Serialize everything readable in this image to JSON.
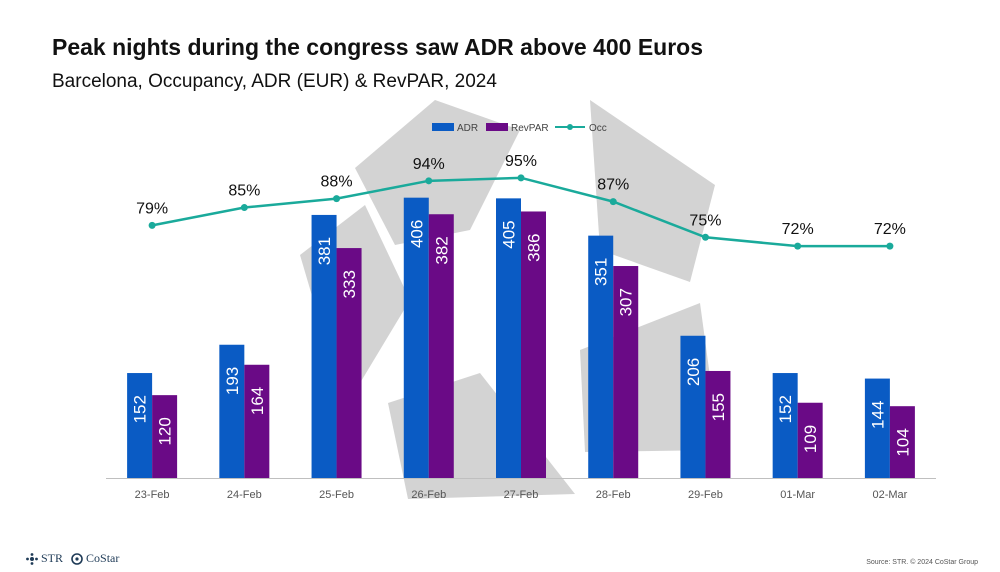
{
  "header": {
    "title": "Peak nights during the congress saw ADR above 400 Euros",
    "subtitle": "Barcelona, Occupancy, ADR (EUR) & RevPAR, 2024"
  },
  "footer": {
    "logo_str": "STR",
    "logo_costar": "CoStar",
    "source": "Source: STR. © 2024 CoStar Group"
  },
  "colors": {
    "adr": "#0a5bc4",
    "revpar": "#6a0a86",
    "occ": "#1aaa9b",
    "axis": "#bfbfbf",
    "overlay": "#b8b8b8"
  },
  "chart_data": {
    "type": "bar",
    "categories": [
      "23-Feb",
      "24-Feb",
      "25-Feb",
      "26-Feb",
      "27-Feb",
      "28-Feb",
      "29-Feb",
      "01-Mar",
      "02-Mar"
    ],
    "series": [
      {
        "name": "ADR",
        "type": "bar",
        "values": [
          152,
          193,
          381,
          406,
          405,
          351,
          206,
          152,
          144
        ]
      },
      {
        "name": "RevPAR",
        "type": "bar",
        "values": [
          120,
          164,
          333,
          382,
          386,
          307,
          155,
          109,
          104
        ]
      },
      {
        "name": "Occ",
        "type": "line",
        "values": [
          79,
          85,
          88,
          94,
          95,
          87,
          75,
          72,
          72
        ],
        "label_suffix": "%"
      }
    ],
    "legend": {
      "position": "top-center",
      "entries": [
        "ADR",
        "RevPAR",
        "Occ"
      ]
    },
    "bar_ylim": [
      0,
      420
    ],
    "occ_ylim": [
      0,
      120
    ],
    "grid": false
  }
}
